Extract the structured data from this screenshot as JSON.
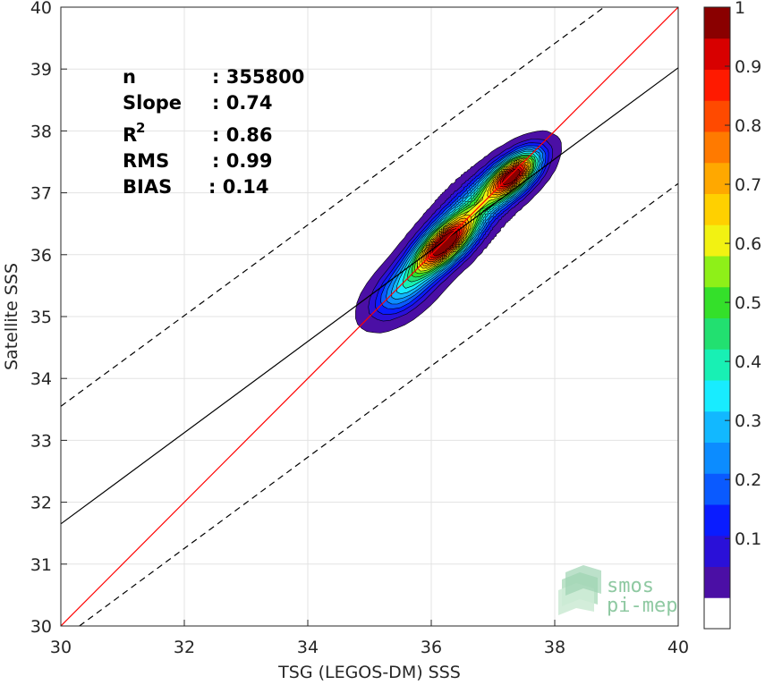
{
  "chart_data": {
    "type": "heatmap",
    "subtype": "density-contour-scatter",
    "xlabel": "TSG (LEGOS-DM) SSS",
    "ylabel": "Satellite SSS",
    "xlim": [
      30,
      40
    ],
    "ylim": [
      30,
      40
    ],
    "xticks": [
      30,
      32,
      34,
      36,
      38,
      40
    ],
    "yticks": [
      30,
      31,
      32,
      33,
      34,
      35,
      36,
      37,
      38,
      39,
      40
    ],
    "grid": true,
    "stats": [
      {
        "label": "n",
        "value": ": 355800"
      },
      {
        "label": "Slope",
        "value": ": 0.74"
      },
      {
        "label": "R",
        "sup": "2",
        "value": ": 0.86"
      },
      {
        "label": "RMS",
        "value": ": 0.99"
      },
      {
        "label": "BIAS",
        "value": ": 0.14"
      }
    ],
    "lines": {
      "identity": {
        "x": [
          30,
          40
        ],
        "y": [
          30,
          40
        ],
        "color": "#ff0000"
      },
      "fit": {
        "x": [
          30,
          40
        ],
        "y": [
          31.65,
          39.02
        ],
        "color": "#000000"
      },
      "fit_upper": {
        "x": [
          30,
          38.8
        ],
        "y": [
          33.55,
          40
        ],
        "color": "#000000",
        "dash": true
      },
      "fit_lower": {
        "x": [
          30.3,
          40
        ],
        "y": [
          30,
          37.15
        ],
        "color": "#000000",
        "dash": true
      }
    },
    "density_peaks": [
      {
        "x": 36.2,
        "y": 36.2,
        "peak": 1.0
      },
      {
        "x": 37.35,
        "y": 37.3,
        "peak": 0.9
      }
    ],
    "colorbar": {
      "ticks": [
        0.1,
        0.2,
        0.3,
        0.4,
        0.5,
        0.6,
        0.7,
        0.8,
        0.9,
        1
      ],
      "tick_labels": [
        "0.1",
        "0.2",
        "0.3",
        "0.4",
        "0.5",
        "0.6",
        "0.7",
        "0.8",
        "0.9",
        "1"
      ],
      "range": [
        0,
        1
      ],
      "colors": [
        "#ffffff",
        "#4b0fa5",
        "#2a10d8",
        "#0a1cff",
        "#0a5aff",
        "#0c8cff",
        "#12b8ff",
        "#18ecff",
        "#18f0b4",
        "#22e070",
        "#34e02a",
        "#8ef018",
        "#f2f212",
        "#ffd000",
        "#ffa800",
        "#ff7a00",
        "#ff4a00",
        "#ff1a00",
        "#d80000",
        "#8a0000"
      ]
    }
  },
  "logo": {
    "line1": "smos",
    "line2": "pi-mep"
  }
}
